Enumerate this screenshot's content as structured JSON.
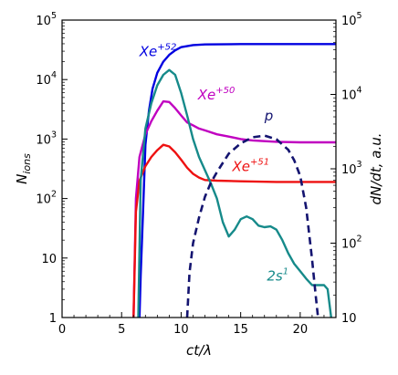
{
  "chart_data": {
    "type": "line",
    "xlabel": "ct/λ",
    "ylabel_left": "N_ions",
    "ylabel_right": "dN/dt, a.u.",
    "xlim": [
      0,
      23
    ],
    "ylim_left": [
      1,
      100000
    ],
    "ylim_right": [
      10,
      100000
    ],
    "yscale": "log",
    "grid": false,
    "x_ticks": [
      0,
      5,
      10,
      15,
      20
    ],
    "y_left_ticks": [
      {
        "value": 1,
        "label": "1"
      },
      {
        "value": 10,
        "label": "10"
      },
      {
        "value": 100,
        "label": "10",
        "exp": "2"
      },
      {
        "value": 1000,
        "label": "10",
        "exp": "3"
      },
      {
        "value": 10000,
        "label": "10",
        "exp": "4"
      },
      {
        "value": 100000,
        "label": "10",
        "exp": "5"
      }
    ],
    "y_right_ticks": [
      {
        "value": 10,
        "label": "10"
      },
      {
        "value": 100,
        "label": "10",
        "exp": "2"
      },
      {
        "value": 1000,
        "label": "10",
        "exp": "3"
      },
      {
        "value": 10000,
        "label": "10",
        "exp": "4"
      },
      {
        "value": 100000,
        "label": "10",
        "exp": "5"
      }
    ],
    "series": [
      {
        "name": "Xe+52",
        "color": "#0000e0",
        "axis": "left",
        "dash": false,
        "x": [
          6.5,
          6.6,
          6.8,
          7.0,
          7.3,
          7.6,
          8.0,
          8.5,
          9.0,
          9.5,
          10.0,
          11.0,
          12.0,
          15.0,
          20.0,
          23.0
        ],
        "y": [
          1,
          5,
          60,
          800,
          3000,
          7000,
          13000,
          20000,
          26000,
          31000,
          35000,
          38000,
          39000,
          39500,
          39500,
          39500
        ]
      },
      {
        "name": "Xe+50",
        "color": "#c000c0",
        "axis": "left",
        "dash": false,
        "x": [
          6.0,
          6.2,
          6.5,
          7.0,
          7.5,
          8.0,
          8.5,
          9.0,
          9.5,
          10.0,
          10.5,
          11.0,
          11.5,
          12.0,
          13.0,
          14.0,
          15.0,
          16.0,
          18.0,
          20.0,
          23.0
        ],
        "y": [
          1,
          100,
          500,
          1200,
          2000,
          3000,
          4300,
          4200,
          3300,
          2500,
          1900,
          1700,
          1500,
          1400,
          1200,
          1100,
          1000,
          950,
          900,
          880,
          880
        ]
      },
      {
        "name": "Xe+51",
        "color": "#ee1111",
        "axis": "left",
        "dash": false,
        "x": [
          6.0,
          6.2,
          6.5,
          7.0,
          7.5,
          8.0,
          8.5,
          9.0,
          9.5,
          10.0,
          10.5,
          11.0,
          11.5,
          12.0,
          13.0,
          15.0,
          18.0,
          20.0,
          23.0
        ],
        "y": [
          1,
          60,
          200,
          350,
          500,
          650,
          800,
          750,
          600,
          450,
          330,
          260,
          225,
          205,
          200,
          195,
          190,
          190,
          190
        ]
      },
      {
        "name": "2s1",
        "color": "#168a8a",
        "axis": "left",
        "dash": false,
        "x": [
          6.4,
          6.6,
          7.0,
          7.5,
          8.0,
          8.5,
          9.0,
          9.5,
          10.0,
          10.5,
          11.0,
          11.5,
          12.0,
          12.5,
          13.0,
          13.5,
          14.0,
          14.5,
          15.0,
          15.5,
          16.0,
          16.5,
          17.0,
          17.5,
          18.0,
          18.5,
          19.0,
          19.5,
          20.0,
          20.5,
          21.0,
          21.5,
          22.0,
          22.3,
          22.6
        ],
        "y": [
          1,
          200,
          1500,
          4000,
          8000,
          12000,
          14500,
          12000,
          6000,
          2500,
          1000,
          500,
          300,
          180,
          100,
          40,
          23,
          30,
          45,
          50,
          45,
          35,
          33,
          34,
          30,
          20,
          12,
          8,
          6,
          4.5,
          3.5,
          3.5,
          3.5,
          3,
          1
        ]
      },
      {
        "name": "p",
        "color": "#141470",
        "axis": "right",
        "dash": true,
        "x": [
          10.5,
          10.7,
          11.0,
          11.5,
          12.0,
          12.5,
          13.0,
          13.5,
          14.0,
          15.0,
          16.0,
          17.0,
          18.0,
          19.0,
          19.5,
          20.0,
          20.5,
          21.0,
          21.3,
          21.5
        ],
        "y": [
          10,
          40,
          100,
          220,
          420,
          650,
          900,
          1200,
          1600,
          2200,
          2650,
          2800,
          2500,
          1800,
          1300,
          800,
          300,
          60,
          20,
          10
        ]
      }
    ],
    "annotations": [
      {
        "id": "xe52",
        "base": "Xe",
        "sup": "+52",
        "color": "#0000e0",
        "x": 6.5,
        "y": 25000
      },
      {
        "id": "xe50",
        "base": "Xe",
        "sup": "+50",
        "color": "#c000c0",
        "x": 11.4,
        "y": 4600
      },
      {
        "id": "xe51",
        "base": "Xe",
        "sup": "+51",
        "color": "#ee1111",
        "x": 14.3,
        "y": 290
      },
      {
        "id": "p",
        "base": "p",
        "sup": "",
        "color": "#141470",
        "x": 17.0,
        "y": 2050
      },
      {
        "id": "s21",
        "base": "2s",
        "sup": "1",
        "color": "#168a8a",
        "x": 17.2,
        "y": 4.2
      }
    ]
  }
}
